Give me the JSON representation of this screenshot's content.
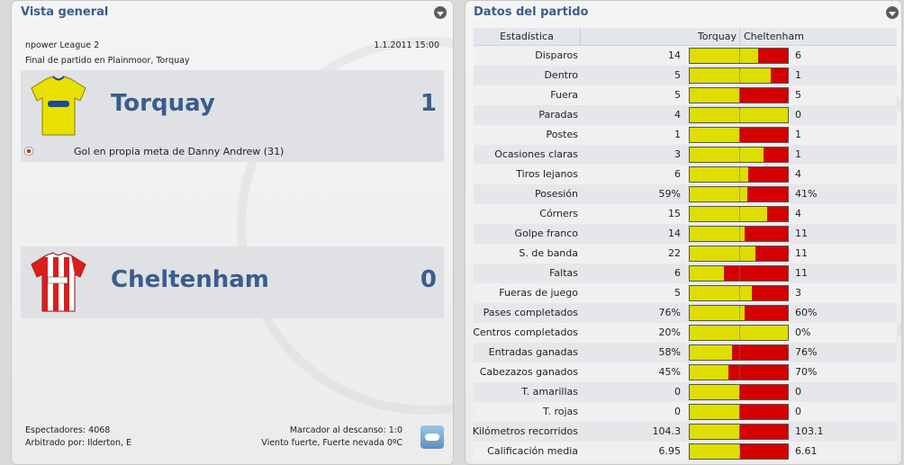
{
  "overview": {
    "title": "Vista general",
    "competition": "npower League 2",
    "datetime": "1.1.2011 15:00",
    "venue": "Final de partido en Plainmoor, Torquay",
    "home": {
      "name": "Torquay",
      "score": "1",
      "shirt_color": "#e8e000"
    },
    "away": {
      "name": "Cheltenham",
      "score": "0",
      "shirt_color": "#d91e1e"
    },
    "events": [
      {
        "text": "Gol en propia meta de Danny Andrew (31)"
      }
    ],
    "attendance": "Espectadores: 4068",
    "referee": "Arbitrado por: Ilderton, E",
    "halftime": "Marcador al descanso: 1:0",
    "weather": "Viento fuerte, Fuerte nevada 0ºC",
    "icons": {
      "collapse": "chevron-down-icon",
      "goal": "own-goal-ball-icon",
      "weather": "snow-cloud-icon"
    }
  },
  "match_stats": {
    "title": "Datos del partido",
    "header": {
      "stat": "Estadística",
      "home": "Torquay",
      "away": "Cheltenham"
    },
    "colors": {
      "home": "#dede00",
      "away": "#d40000"
    },
    "rows": [
      {
        "label": "Disparos",
        "home": "14",
        "away": "6",
        "home_share": 0.7
      },
      {
        "label": "Dentro",
        "home": "5",
        "away": "1",
        "home_share": 0.83
      },
      {
        "label": "Fuera",
        "home": "5",
        "away": "5",
        "home_share": 0.5
      },
      {
        "label": "Paradas",
        "home": "4",
        "away": "0",
        "home_share": 1.0
      },
      {
        "label": "Postes",
        "home": "1",
        "away": "1",
        "home_share": 0.5
      },
      {
        "label": "Ocasiones claras",
        "home": "3",
        "away": "1",
        "home_share": 0.75
      },
      {
        "label": "Tiros lejanos",
        "home": "6",
        "away": "4",
        "home_share": 0.6
      },
      {
        "label": "Posesión",
        "home": "59%",
        "away": "41%",
        "home_share": 0.59
      },
      {
        "label": "Córners",
        "home": "15",
        "away": "4",
        "home_share": 0.79
      },
      {
        "label": "Golpe franco",
        "home": "14",
        "away": "11",
        "home_share": 0.56
      },
      {
        "label": "S. de banda",
        "home": "22",
        "away": "11",
        "home_share": 0.67
      },
      {
        "label": "Faltas",
        "home": "6",
        "away": "11",
        "home_share": 0.35
      },
      {
        "label": "Fueras de juego",
        "home": "5",
        "away": "3",
        "home_share": 0.63
      },
      {
        "label": "Pases completados",
        "home": "76%",
        "away": "60%",
        "home_share": 0.56
      },
      {
        "label": "Centros completados",
        "home": "20%",
        "away": "0%",
        "home_share": 1.0
      },
      {
        "label": "Entradas ganadas",
        "home": "58%",
        "away": "76%",
        "home_share": 0.43
      },
      {
        "label": "Cabezazos ganados",
        "home": "45%",
        "away": "70%",
        "home_share": 0.39
      },
      {
        "label": "T. amarillas",
        "home": "0",
        "away": "0",
        "home_share": 0.5
      },
      {
        "label": "T. rojas",
        "home": "0",
        "away": "0",
        "home_share": 0.5
      },
      {
        "label": "Kilómetros recorridos",
        "home": "104.3",
        "away": "103.1",
        "home_share": 0.5
      },
      {
        "label": "Calificación media",
        "home": "6.95",
        "away": "6.61",
        "home_share": 0.51
      }
    ]
  }
}
